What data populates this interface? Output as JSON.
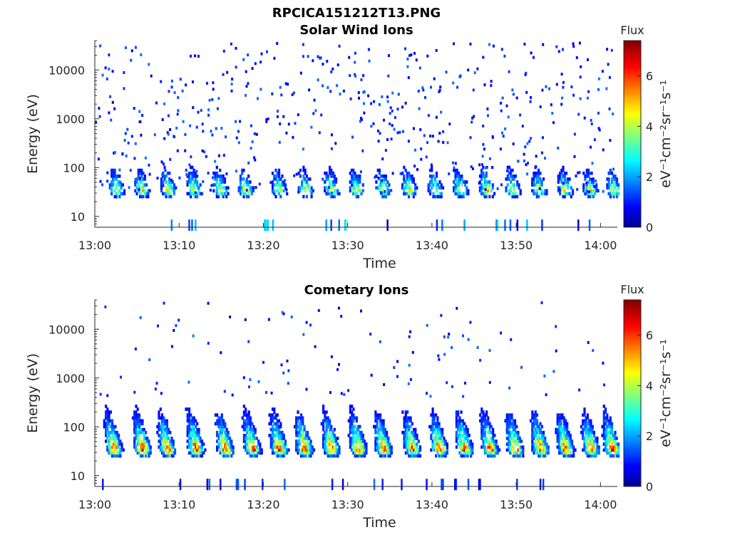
{
  "figure": {
    "title": "RPCICA151212T13.PNG"
  },
  "chart_data": [
    {
      "type": "heatmap",
      "title": "Solar Wind Ions",
      "xlabel": "Time",
      "ylabel": "Energy (eV)",
      "x_ticks": [
        "13:00",
        "13:10",
        "13:20",
        "13:30",
        "13:40",
        "13:50",
        "14:00"
      ],
      "x_range_minutes": [
        0,
        62
      ],
      "y_scale": "log",
      "y_ticks": [
        10,
        100,
        1000,
        10000
      ],
      "y_tick_labels": [
        "10",
        "100",
        "1000",
        "10000"
      ],
      "y_range": [
        6,
        40000
      ],
      "colorbar": {
        "label": "Flux",
        "unit": "eV⁻¹cm⁻²sr⁻¹s⁻¹",
        "range": [
          0,
          7.4
        ],
        "ticks": [
          0,
          2,
          4,
          6
        ],
        "colormap": "jet"
      },
      "burst_times_min": [
        2.5,
        5.5,
        8.6,
        11.7,
        14.8,
        17.8,
        21.8,
        24.9,
        28.0,
        31.0,
        34.1,
        37.2,
        40.3,
        43.3,
        46.4,
        49.5,
        52.6,
        55.7,
        58.7,
        61.5
      ],
      "burst_peak_energy_eV": 35,
      "burst_peak_flux": 5.0,
      "background": "sparse low-flux scatter (0.5–2) from 30 eV to 40000 eV"
    },
    {
      "type": "heatmap",
      "title": "Cometary Ions",
      "xlabel": "Time",
      "ylabel": "Energy (eV)",
      "x_ticks": [
        "13:00",
        "13:10",
        "13:20",
        "13:30",
        "13:40",
        "13:50",
        "14:00"
      ],
      "x_range_minutes": [
        0,
        62
      ],
      "y_scale": "log",
      "y_ticks": [
        10,
        100,
        1000,
        10000
      ],
      "y_tick_labels": [
        "10",
        "100",
        "1000",
        "10000"
      ],
      "y_range": [
        6,
        40000
      ],
      "colorbar": {
        "label": "Flux",
        "unit": "eV⁻¹cm⁻²sr⁻¹s⁻¹",
        "range": [
          0,
          7.4
        ],
        "ticks": [
          0,
          2,
          4,
          6
        ],
        "colormap": "jet"
      },
      "burst_times_min": [
        2.2,
        5.6,
        8.5,
        11.9,
        15.4,
        18.6,
        21.8,
        24.8,
        28.0,
        31.2,
        34.2,
        37.6,
        40.8,
        43.8,
        46.8,
        49.8,
        52.8,
        55.8,
        58.8,
        61.3
      ],
      "burst_peak_energy_eV": 35,
      "burst_peak_flux": 6.8,
      "background": "sparse low-flux scatter (0.5–1.5) from 300 eV to 11000 eV"
    }
  ]
}
